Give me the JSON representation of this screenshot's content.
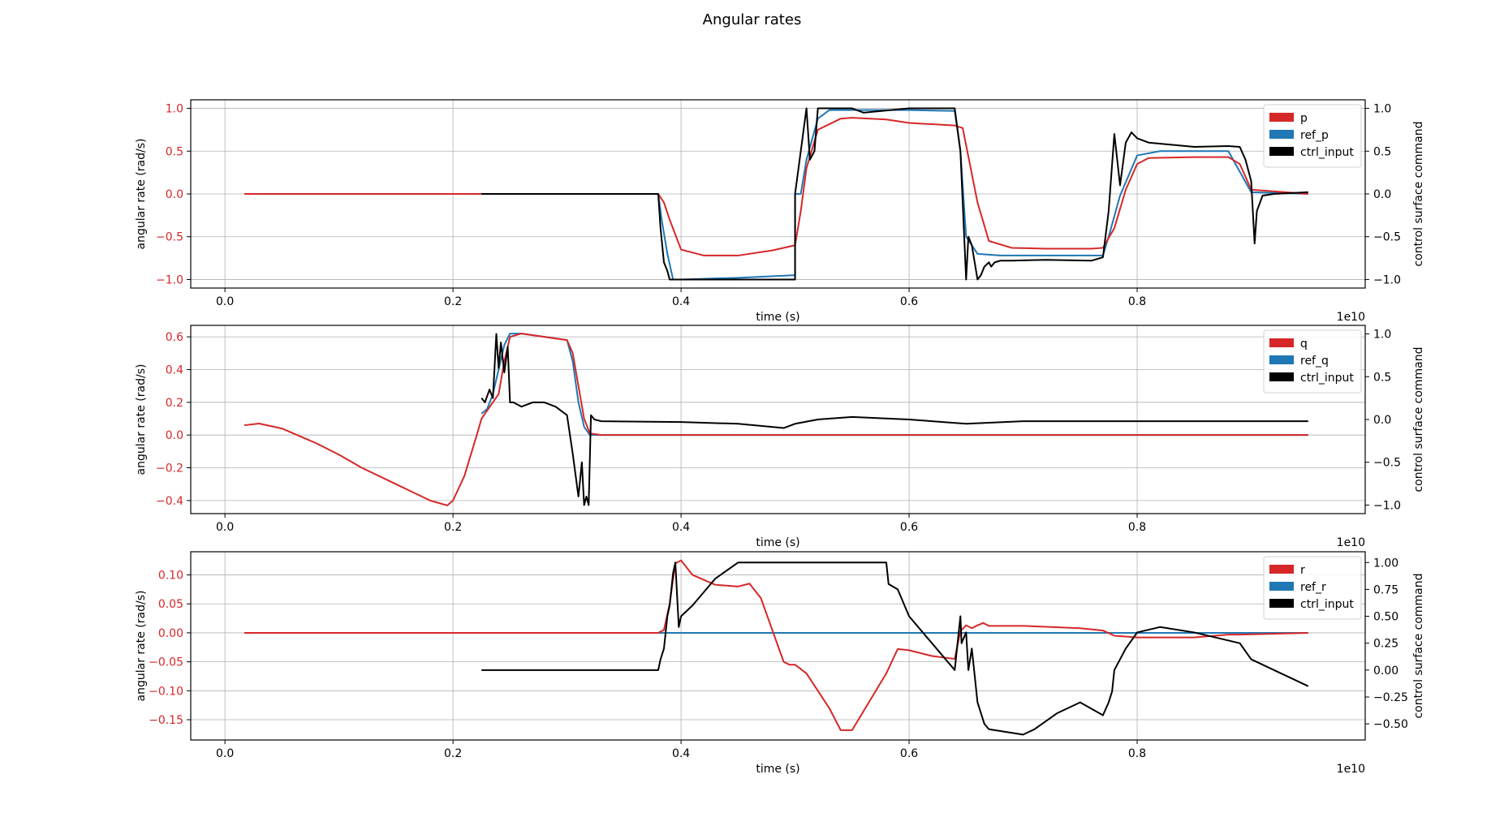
{
  "figure": {
    "title": "Angular rates"
  },
  "colors": {
    "data": "#d62728",
    "ref": "#1f77b4",
    "ctrl": "#000000",
    "grid": "#b0b0b0"
  },
  "chart_data": [
    {
      "type": "line",
      "title": "",
      "xlabel": "time (s)",
      "x_offset_text": "1e10",
      "ylabel": "angular rate (rad/s)",
      "y2label": "control surface command",
      "xlim": [
        -0.03,
        1.0
      ],
      "ylim": [
        -1.1,
        1.1
      ],
      "y2lim": [
        -1.1,
        1.1
      ],
      "xticks": [
        0.0,
        0.2,
        0.4,
        0.6,
        0.8
      ],
      "xtick_labels": [
        "0.0",
        "0.2",
        "0.4",
        "0.6",
        "0.8"
      ],
      "yticks": [
        -1.0,
        -0.5,
        0.0,
        0.5,
        1.0
      ],
      "ytick_labels": [
        "−1.0",
        "−0.5",
        "0.0",
        "0.5",
        "1.0"
      ],
      "y2ticks": [
        -1.0,
        -0.5,
        0.0,
        0.5,
        1.0
      ],
      "y2tick_labels": [
        "−1.0",
        "−0.5",
        "0.0",
        "0.5",
        "1.0"
      ],
      "grid": true,
      "legend_position": "top-right",
      "legend": [
        "p",
        "ref_p",
        "ctrl_input"
      ],
      "series": [
        {
          "name": "p",
          "axis": "left",
          "color": "#d62728",
          "x": [
            0.017,
            0.1,
            0.2,
            0.3,
            0.38,
            0.385,
            0.39,
            0.4,
            0.42,
            0.45,
            0.48,
            0.5,
            0.505,
            0.51,
            0.52,
            0.54,
            0.55,
            0.58,
            0.6,
            0.64,
            0.647,
            0.66,
            0.67,
            0.69,
            0.72,
            0.76,
            0.77,
            0.78,
            0.79,
            0.8,
            0.81,
            0.85,
            0.88,
            0.89,
            0.9,
            0.95
          ],
          "y": [
            0,
            0,
            0,
            0,
            0,
            -0.1,
            -0.3,
            -0.65,
            -0.72,
            -0.72,
            -0.66,
            -0.6,
            -0.2,
            0.3,
            0.75,
            0.88,
            0.89,
            0.87,
            0.83,
            0.8,
            0.77,
            -0.1,
            -0.55,
            -0.63,
            -0.64,
            -0.64,
            -0.63,
            -0.4,
            0.05,
            0.35,
            0.42,
            0.43,
            0.43,
            0.35,
            0.05,
            0
          ]
        },
        {
          "name": "ref_p",
          "axis": "left",
          "color": "#1f77b4",
          "x": [
            0.225,
            0.3,
            0.38,
            0.383,
            0.388,
            0.393,
            0.4,
            0.45,
            0.5,
            0.5,
            0.505,
            0.51,
            0.52,
            0.53,
            0.6,
            0.64,
            0.645,
            0.65,
            0.66,
            0.68,
            0.72,
            0.77,
            0.775,
            0.785,
            0.8,
            0.82,
            0.85,
            0.88,
            0.9,
            0.95
          ],
          "y": [
            0,
            0,
            0,
            -0.3,
            -0.7,
            -1.0,
            -1.0,
            -0.98,
            -0.95,
            0,
            0,
            0.4,
            0.88,
            0.98,
            0.98,
            0.97,
            0.5,
            -0.5,
            -0.7,
            -0.72,
            -0.72,
            -0.72,
            -0.5,
            -0.02,
            0.45,
            0.5,
            0.5,
            0.5,
            0.02,
            0
          ]
        },
        {
          "name": "ctrl_input",
          "axis": "right",
          "color": "#000000",
          "x": [
            0.225,
            0.3,
            0.38,
            0.382,
            0.385,
            0.388,
            0.39,
            0.395,
            0.4,
            0.45,
            0.49,
            0.495,
            0.5,
            0.5,
            0.505,
            0.51,
            0.513,
            0.517,
            0.52,
            0.53,
            0.55,
            0.56,
            0.6,
            0.64,
            0.645,
            0.65,
            0.652,
            0.655,
            0.66,
            0.663,
            0.666,
            0.67,
            0.672,
            0.675,
            0.68,
            0.69,
            0.72,
            0.76,
            0.77,
            0.775,
            0.78,
            0.785,
            0.79,
            0.795,
            0.8,
            0.81,
            0.85,
            0.88,
            0.89,
            0.895,
            0.9,
            0.903,
            0.905,
            0.91,
            0.92,
            0.95
          ],
          "y": [
            0,
            0,
            0,
            -0.4,
            -0.8,
            -0.9,
            -1.0,
            -1.0,
            -1.0,
            -1.0,
            -1.0,
            -1.0,
            -1.0,
            0.0,
            0.5,
            1.0,
            0.4,
            0.5,
            1.0,
            1.0,
            1.0,
            0.95,
            1.0,
            1.0,
            0.5,
            -1.0,
            -0.5,
            -0.6,
            -1.0,
            -0.95,
            -0.85,
            -0.8,
            -0.85,
            -0.8,
            -0.78,
            -0.78,
            -0.77,
            -0.78,
            -0.74,
            -0.2,
            0.7,
            0.1,
            0.6,
            0.72,
            0.65,
            0.6,
            0.55,
            0.56,
            0.55,
            0.4,
            0.15,
            -0.58,
            -0.2,
            -0.02,
            0,
            0.02
          ]
        }
      ]
    },
    {
      "type": "line",
      "title": "",
      "xlabel": "time (s)",
      "x_offset_text": "1e10",
      "ylabel": "angular rate (rad/s)",
      "y2label": "control surface command",
      "xlim": [
        -0.03,
        1.0
      ],
      "ylim": [
        -0.48,
        0.67
      ],
      "y2lim": [
        -1.1,
        1.1
      ],
      "xticks": [
        0.0,
        0.2,
        0.4,
        0.6,
        0.8
      ],
      "xtick_labels": [
        "0.0",
        "0.2",
        "0.4",
        "0.6",
        "0.8"
      ],
      "yticks": [
        -0.4,
        -0.2,
        0.0,
        0.2,
        0.4,
        0.6
      ],
      "ytick_labels": [
        "−0.4",
        "−0.2",
        "0.0",
        "0.2",
        "0.4",
        "0.6"
      ],
      "y2ticks": [
        -1.0,
        -0.5,
        0.0,
        0.5,
        1.0
      ],
      "y2tick_labels": [
        "−1.0",
        "−0.5",
        "0.0",
        "0.5",
        "1.0"
      ],
      "grid": true,
      "legend_position": "top-right",
      "legend": [
        "q",
        "ref_q",
        "ctrl_input"
      ],
      "series": [
        {
          "name": "q",
          "axis": "left",
          "color": "#d62728",
          "x": [
            0.017,
            0.03,
            0.05,
            0.08,
            0.1,
            0.12,
            0.15,
            0.18,
            0.195,
            0.2,
            0.21,
            0.22,
            0.225,
            0.23,
            0.24,
            0.245,
            0.25,
            0.26,
            0.28,
            0.3,
            0.305,
            0.31,
            0.315,
            0.32,
            0.33,
            0.4,
            0.5,
            0.6,
            0.7,
            0.8,
            0.95
          ],
          "y": [
            0.06,
            0.07,
            0.04,
            -0.05,
            -0.12,
            -0.2,
            -0.3,
            -0.4,
            -0.43,
            -0.4,
            -0.25,
            -0.02,
            0.1,
            0.15,
            0.25,
            0.45,
            0.6,
            0.62,
            0.6,
            0.58,
            0.5,
            0.3,
            0.1,
            0.01,
            0.0,
            0.0,
            0.0,
            0.0,
            0.0,
            0.0,
            0.0
          ]
        },
        {
          "name": "ref_q",
          "axis": "left",
          "color": "#1f77b4",
          "x": [
            0.225,
            0.23,
            0.235,
            0.24,
            0.245,
            0.25,
            0.26,
            0.28,
            0.3,
            0.305,
            0.31,
            0.315,
            0.32,
            0.4,
            0.95
          ],
          "y": [
            0.13,
            0.16,
            0.25,
            0.4,
            0.55,
            0.62,
            0.62,
            0.6,
            0.58,
            0.45,
            0.2,
            0.05,
            0.0,
            0.0,
            0.0
          ]
        },
        {
          "name": "ctrl_input",
          "axis": "right",
          "color": "#000000",
          "x": [
            0.225,
            0.228,
            0.232,
            0.235,
            0.238,
            0.24,
            0.242,
            0.245,
            0.248,
            0.25,
            0.253,
            0.26,
            0.27,
            0.28,
            0.29,
            0.3,
            0.305,
            0.31,
            0.313,
            0.315,
            0.317,
            0.319,
            0.321,
            0.324,
            0.33,
            0.4,
            0.45,
            0.49,
            0.5,
            0.52,
            0.55,
            0.6,
            0.65,
            0.7,
            0.8,
            0.9,
            0.95
          ],
          "y": [
            0.25,
            0.2,
            0.35,
            0.25,
            1.0,
            0.6,
            0.9,
            0.55,
            0.85,
            0.2,
            0.2,
            0.15,
            0.2,
            0.2,
            0.15,
            0.05,
            -0.4,
            -0.9,
            -0.5,
            -1.0,
            -0.9,
            -1.0,
            0.05,
            0.0,
            -0.02,
            -0.03,
            -0.05,
            -0.1,
            -0.05,
            0.0,
            0.03,
            0.0,
            -0.05,
            -0.02,
            -0.02,
            -0.02,
            -0.02
          ]
        }
      ]
    },
    {
      "type": "line",
      "title": "",
      "xlabel": "time (s)",
      "x_offset_text": "1e10",
      "ylabel": "angular rate (rad/s)",
      "y2label": "control surface command",
      "xlim": [
        -0.03,
        1.0
      ],
      "ylim": [
        -0.185,
        0.14
      ],
      "y2lim": [
        -0.65,
        1.1
      ],
      "xticks": [
        0.0,
        0.2,
        0.4,
        0.6,
        0.8
      ],
      "xtick_labels": [
        "0.0",
        "0.2",
        "0.4",
        "0.6",
        "0.8"
      ],
      "yticks": [
        -0.15,
        -0.1,
        -0.05,
        0.0,
        0.05,
        0.1
      ],
      "ytick_labels": [
        "−0.15",
        "−0.10",
        "−0.05",
        "0.00",
        "0.05",
        "0.10"
      ],
      "y2ticks": [
        -0.5,
        -0.25,
        0.0,
        0.25,
        0.5,
        0.75,
        1.0
      ],
      "y2tick_labels": [
        "−0.50",
        "−0.25",
        "0.00",
        "0.25",
        "0.50",
        "0.75",
        "1.00"
      ],
      "grid": true,
      "legend_position": "top-right",
      "legend": [
        "r",
        "ref_r",
        "ctrl_input"
      ],
      "series": [
        {
          "name": "r",
          "axis": "left",
          "color": "#d62728",
          "x": [
            0.017,
            0.1,
            0.2,
            0.3,
            0.38,
            0.385,
            0.39,
            0.395,
            0.4,
            0.41,
            0.43,
            0.45,
            0.46,
            0.47,
            0.49,
            0.495,
            0.5,
            0.51,
            0.53,
            0.54,
            0.55,
            0.58,
            0.59,
            0.6,
            0.62,
            0.64,
            0.645,
            0.65,
            0.655,
            0.66,
            0.665,
            0.67,
            0.7,
            0.75,
            0.77,
            0.78,
            0.8,
            0.85,
            0.88,
            0.89,
            0.95
          ],
          "y": [
            0,
            0,
            0,
            0,
            0,
            0.005,
            0.05,
            0.12,
            0.125,
            0.1,
            0.083,
            0.08,
            0.085,
            0.06,
            -0.05,
            -0.055,
            -0.055,
            -0.07,
            -0.13,
            -0.168,
            -0.168,
            -0.07,
            -0.028,
            -0.03,
            -0.04,
            -0.045,
            0.003,
            0.013,
            0.008,
            0.013,
            0.017,
            0.012,
            0.012,
            0.008,
            0.004,
            -0.005,
            -0.008,
            -0.008,
            -0.003,
            -0.003,
            0
          ]
        },
        {
          "name": "ref_r",
          "axis": "left",
          "color": "#1f77b4",
          "x": [
            0.225,
            0.95
          ],
          "y": [
            0,
            0
          ]
        },
        {
          "name": "ctrl_input",
          "axis": "right",
          "color": "#000000",
          "x": [
            0.225,
            0.3,
            0.38,
            0.382,
            0.385,
            0.388,
            0.39,
            0.393,
            0.395,
            0.398,
            0.4,
            0.41,
            0.43,
            0.45,
            0.45,
            0.5,
            0.55,
            0.58,
            0.582,
            0.59,
            0.6,
            0.64,
            0.645,
            0.646,
            0.65,
            0.652,
            0.655,
            0.66,
            0.663,
            0.666,
            0.67,
            0.7,
            0.71,
            0.73,
            0.75,
            0.77,
            0.775,
            0.778,
            0.78,
            0.79,
            0.8,
            0.82,
            0.85,
            0.87,
            0.89,
            0.9,
            0.91,
            0.95
          ],
          "y": [
            0,
            0,
            0,
            0.1,
            0.2,
            0.5,
            0.6,
            0.9,
            1.0,
            0.4,
            0.5,
            0.6,
            0.85,
            1.0,
            1.0,
            1.0,
            1.0,
            1.0,
            0.8,
            0.75,
            0.5,
            0.0,
            0.5,
            0.25,
            0.35,
            0.0,
            0.2,
            -0.3,
            -0.4,
            -0.5,
            -0.55,
            -0.6,
            -0.55,
            -0.4,
            -0.3,
            -0.42,
            -0.3,
            -0.2,
            0.0,
            0.2,
            0.35,
            0.4,
            0.35,
            0.3,
            0.25,
            0.1,
            0.05,
            -0.15
          ]
        }
      ]
    }
  ]
}
